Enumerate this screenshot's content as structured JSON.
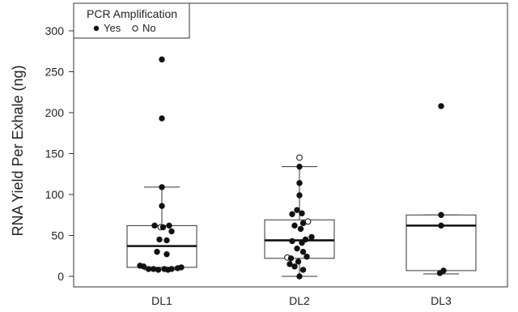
{
  "chart_data": {
    "type": "box",
    "xlabel": "",
    "ylabel": "RNA Yield Per Exhale (ng)",
    "ylim": [
      -10,
      335
    ],
    "yticks": [
      0,
      50,
      100,
      150,
      200,
      250,
      300
    ],
    "categories": [
      "DL1",
      "DL2",
      "DL3"
    ],
    "legend": {
      "title": "PCR Amplification",
      "placement": "top-left",
      "items": [
        {
          "label": "Yes",
          "marker": "filled"
        },
        {
          "label": "No",
          "marker": "open"
        }
      ]
    },
    "boxes": [
      {
        "category": "DL1",
        "whisker_low": 8,
        "q1": 11,
        "median": 37,
        "q3": 62,
        "whisker_high": 109
      },
      {
        "category": "DL2",
        "whisker_low": 0,
        "q1": 22,
        "median": 44,
        "q3": 69,
        "whisker_high": 134
      },
      {
        "category": "DL3",
        "whisker_low": 3,
        "q1": 7,
        "median": 62,
        "q3": 75,
        "whisker_high": 75
      }
    ],
    "points": [
      {
        "category": "DL1",
        "y": 265,
        "pcr": "Yes",
        "jitter": 0.0
      },
      {
        "category": "DL1",
        "y": 193,
        "pcr": "Yes",
        "jitter": 0.0
      },
      {
        "category": "DL1",
        "y": 109,
        "pcr": "Yes",
        "jitter": 0.0
      },
      {
        "category": "DL1",
        "y": 86,
        "pcr": "Yes",
        "jitter": 0.0
      },
      {
        "category": "DL1",
        "y": 62,
        "pcr": "Yes",
        "jitter": -0.3
      },
      {
        "category": "DL1",
        "y": 62,
        "pcr": "Yes",
        "jitter": 0.3
      },
      {
        "category": "DL1",
        "y": 60,
        "pcr": "No",
        "jitter": -0.05
      },
      {
        "category": "DL1",
        "y": 60,
        "pcr": "Yes",
        "jitter": 0.05
      },
      {
        "category": "DL1",
        "y": 55,
        "pcr": "Yes",
        "jitter": 0.4
      },
      {
        "category": "DL1",
        "y": 45,
        "pcr": "Yes",
        "jitter": -0.1
      },
      {
        "category": "DL1",
        "y": 44,
        "pcr": "Yes",
        "jitter": 0.2
      },
      {
        "category": "DL1",
        "y": 30,
        "pcr": "Yes",
        "jitter": -0.2
      },
      {
        "category": "DL1",
        "y": 27,
        "pcr": "Yes",
        "jitter": 0.2
      },
      {
        "category": "DL1",
        "y": 13,
        "pcr": "Yes",
        "jitter": -0.9
      },
      {
        "category": "DL1",
        "y": 12,
        "pcr": "Yes",
        "jitter": -0.75
      },
      {
        "category": "DL1",
        "y": 11,
        "pcr": "Yes",
        "jitter": 0.8
      },
      {
        "category": "DL1",
        "y": 10,
        "pcr": "Yes",
        "jitter": 0.65
      },
      {
        "category": "DL1",
        "y": 9,
        "pcr": "Yes",
        "jitter": -0.55
      },
      {
        "category": "DL1",
        "y": 9,
        "pcr": "Yes",
        "jitter": -0.35
      },
      {
        "category": "DL1",
        "y": 9,
        "pcr": "Yes",
        "jitter": 0.4
      },
      {
        "category": "DL1",
        "y": 9,
        "pcr": "Yes",
        "jitter": 0.1
      },
      {
        "category": "DL1",
        "y": 8,
        "pcr": "Yes",
        "jitter": -0.15
      },
      {
        "category": "DL1",
        "y": 8,
        "pcr": "Yes",
        "jitter": 0.25
      },
      {
        "category": "DL2",
        "y": 145,
        "pcr": "No",
        "jitter": 0.0
      },
      {
        "category": "DL2",
        "y": 134,
        "pcr": "Yes",
        "jitter": 0.0
      },
      {
        "category": "DL2",
        "y": 114,
        "pcr": "Yes",
        "jitter": 0.0
      },
      {
        "category": "DL2",
        "y": 99,
        "pcr": "Yes",
        "jitter": 0.0
      },
      {
        "category": "DL2",
        "y": 81,
        "pcr": "Yes",
        "jitter": -0.1
      },
      {
        "category": "DL2",
        "y": 77,
        "pcr": "Yes",
        "jitter": 0.1
      },
      {
        "category": "DL2",
        "y": 76,
        "pcr": "Yes",
        "jitter": -0.3
      },
      {
        "category": "DL2",
        "y": 67,
        "pcr": "No",
        "jitter": 0.35
      },
      {
        "category": "DL2",
        "y": 65,
        "pcr": "Yes",
        "jitter": 0.15
      },
      {
        "category": "DL2",
        "y": 62,
        "pcr": "Yes",
        "jitter": -0.2
      },
      {
        "category": "DL2",
        "y": 58,
        "pcr": "Yes",
        "jitter": 0.05
      },
      {
        "category": "DL2",
        "y": 48,
        "pcr": "Yes",
        "jitter": 0.5
      },
      {
        "category": "DL2",
        "y": 45,
        "pcr": "Yes",
        "jitter": 0.25
      },
      {
        "category": "DL2",
        "y": 43,
        "pcr": "Yes",
        "jitter": -0.3
      },
      {
        "category": "DL2",
        "y": 41,
        "pcr": "Yes",
        "jitter": 0.1
      },
      {
        "category": "DL2",
        "y": 34,
        "pcr": "Yes",
        "jitter": -0.1
      },
      {
        "category": "DL2",
        "y": 30,
        "pcr": "Yes",
        "jitter": 0.15
      },
      {
        "category": "DL2",
        "y": 24,
        "pcr": "Yes",
        "jitter": 0.3
      },
      {
        "category": "DL2",
        "y": 23,
        "pcr": "No",
        "jitter": -0.5
      },
      {
        "category": "DL2",
        "y": 22,
        "pcr": "Yes",
        "jitter": -0.35
      },
      {
        "category": "DL2",
        "y": 18,
        "pcr": "Yes",
        "jitter": -0.05
      },
      {
        "category": "DL2",
        "y": 15,
        "pcr": "Yes",
        "jitter": -0.4
      },
      {
        "category": "DL2",
        "y": 12,
        "pcr": "Yes",
        "jitter": -0.2
      },
      {
        "category": "DL2",
        "y": 8,
        "pcr": "Yes",
        "jitter": 0.15
      },
      {
        "category": "DL2",
        "y": 0,
        "pcr": "Yes",
        "jitter": 0.0
      },
      {
        "category": "DL3",
        "y": 208,
        "pcr": "Yes",
        "jitter": 0.0
      },
      {
        "category": "DL3",
        "y": 75,
        "pcr": "Yes",
        "jitter": 0.0
      },
      {
        "category": "DL3",
        "y": 62,
        "pcr": "Yes",
        "jitter": 0.0
      },
      {
        "category": "DL3",
        "y": 7,
        "pcr": "Yes",
        "jitter": 0.1
      },
      {
        "category": "DL3",
        "y": 4,
        "pcr": "Yes",
        "jitter": -0.05
      }
    ]
  }
}
